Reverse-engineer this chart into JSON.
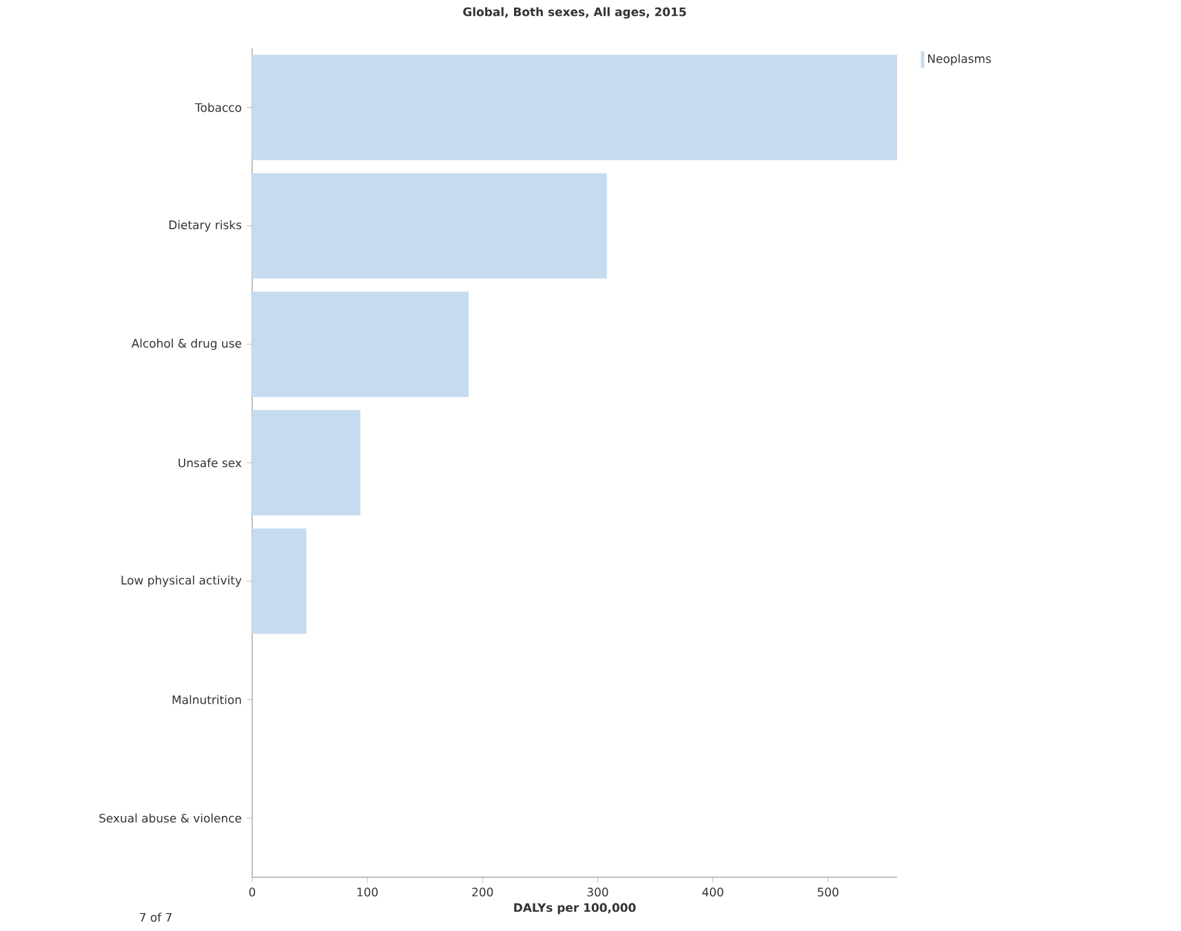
{
  "chart_data": {
    "type": "bar",
    "orientation": "horizontal",
    "title": "Global, Both sexes, All ages, 2015",
    "xlabel": "DALYs per 100,000",
    "categories": [
      "Tobacco",
      "Dietary risks",
      "Alcohol & drug use",
      "Unsafe sex",
      "Low physical activity",
      "Malnutrition",
      "Sexual abuse & violence"
    ],
    "series": [
      {
        "name": "Neoplasms",
        "color": "#c6dbef",
        "values": [
          560,
          308,
          188,
          94,
          47,
          0,
          0
        ]
      }
    ],
    "xlim": [
      0,
      560
    ],
    "xticks": [
      0,
      100,
      200,
      300,
      400,
      500
    ],
    "grid": false,
    "legend": "top right",
    "annotations": [
      "7 of 7"
    ]
  }
}
